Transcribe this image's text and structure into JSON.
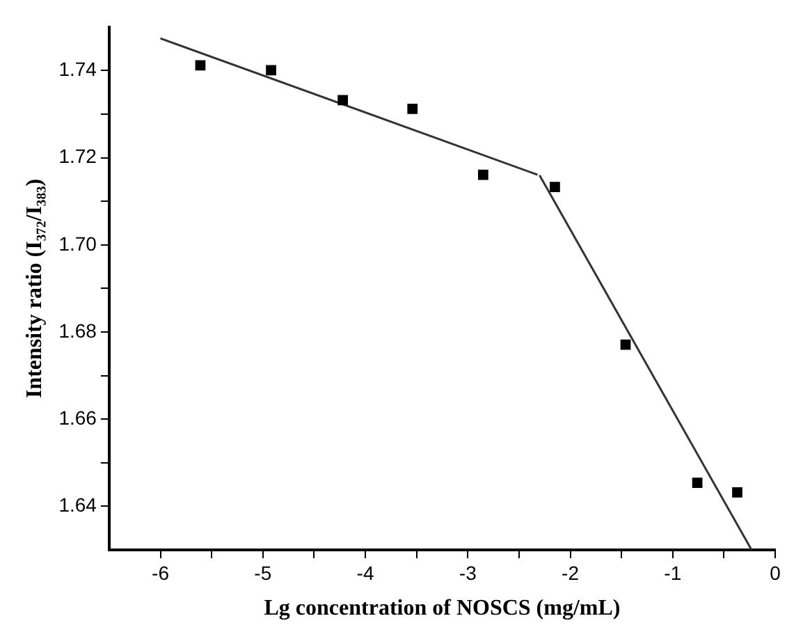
{
  "chart_data": {
    "type": "scatter",
    "xlabel": "Lg concentration of NOSCS (mg/mL)",
    "ylabel": "Intensity ratio (I₃₇₂/I₃₈₃)",
    "xlim": [
      -6.5,
      0
    ],
    "xticks": [
      -6,
      {
        "value": -5.5,
        "label": null
      },
      -5,
      {
        "value": -4.5,
        "label": null
      },
      -4,
      {
        "value": -3.5,
        "label": null
      },
      -3,
      {
        "value": -2.5,
        "label": null
      },
      -2,
      {
        "value": -1.5,
        "label": null
      },
      -1,
      {
        "value": -0.5,
        "label": null
      },
      0
    ],
    "ylim": [
      1.63,
      1.75
    ],
    "yticks": [
      {
        "value": 1.64,
        "label": "1.64"
      },
      {
        "value": 1.65,
        "label": null
      },
      {
        "value": 1.66,
        "label": "1.66"
      },
      {
        "value": 1.67,
        "label": null
      },
      {
        "value": 1.68,
        "label": "1.68"
      },
      {
        "value": 1.69,
        "label": null
      },
      {
        "value": 1.7,
        "label": "1.70"
      },
      {
        "value": 1.71,
        "label": null
      },
      {
        "value": 1.72,
        "label": "1.72"
      },
      {
        "value": 1.73,
        "label": null
      },
      {
        "value": 1.74,
        "label": "1.74"
      }
    ],
    "grid": false,
    "legend": false,
    "marker": "square",
    "line_style": "solid",
    "series": [
      {
        "color": "#000000",
        "x": [
          -5.61,
          -4.92,
          -4.22,
          -3.54,
          -2.85,
          -2.15,
          -1.46,
          -0.76,
          -0.37
        ],
        "values": [
          1.7412,
          1.7401,
          1.7332,
          1.7312,
          1.7161,
          1.7133,
          1.6771,
          1.6454,
          1.6432
        ]
      },
      {
        "type": "line",
        "marker": "none",
        "color": "#333333",
        "x": [
          -6,
          -2.32
        ],
        "values": [
          1.7474,
          1.7161
        ]
      },
      {
        "type": "line",
        "marker": "none",
        "color": "#333333",
        "x": [
          -2.3,
          -0.23
        ],
        "values": [
          1.716,
          1.63
        ]
      }
    ]
  }
}
